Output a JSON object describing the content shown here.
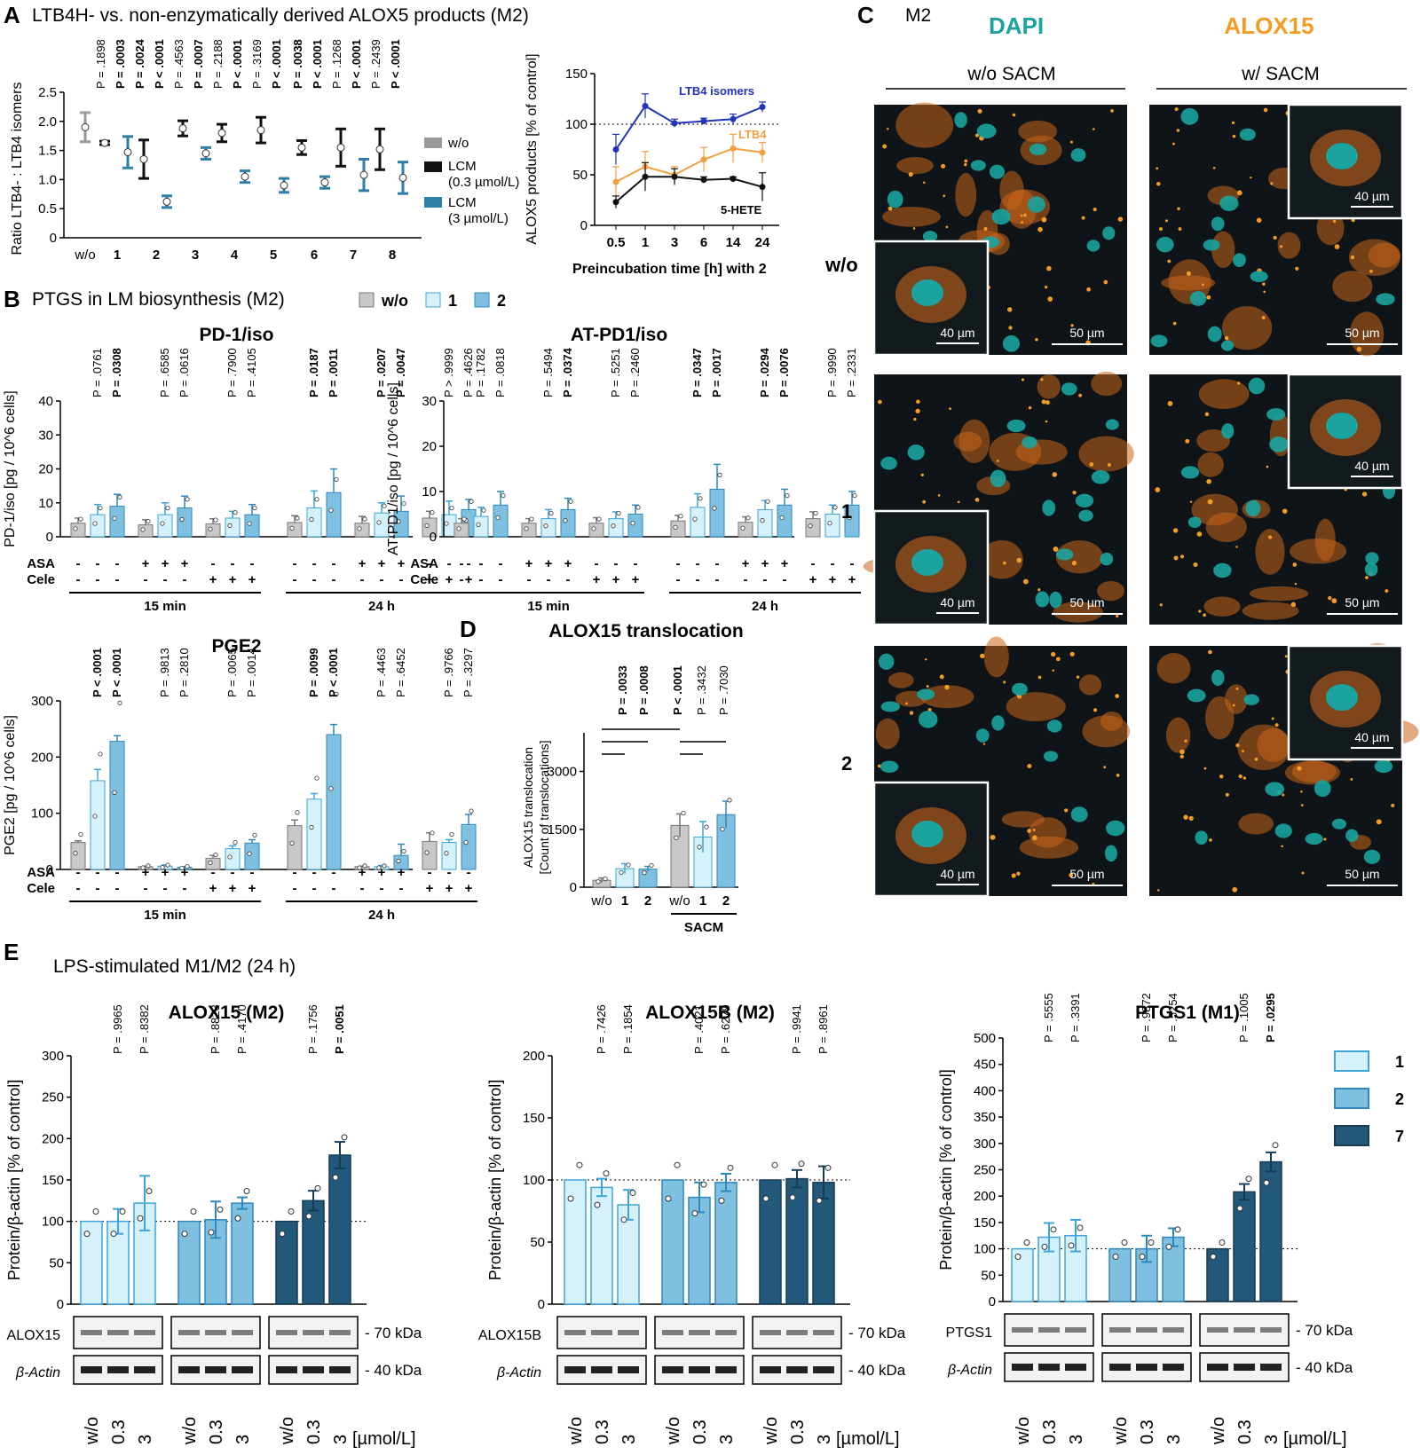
{
  "panels": {
    "A": {
      "letter": "A",
      "title": "LTB4H- vs. non-enzymatically derived ALOX5 products (M2)"
    },
    "B": {
      "letter": "B",
      "title": "PTGS in LM biosynthesis (M2)"
    },
    "C": {
      "letter": "C",
      "title": "M2"
    },
    "D": {
      "letter": "D"
    },
    "E": {
      "letter": "E",
      "title": "LPS-stimulated M1/M2 (24 h)"
    }
  },
  "chart_data": [
    {
      "id": "A_ratio",
      "type": "scatter",
      "ylabel": "Ratio LTB4- : LTB4 isomers",
      "ylim": [
        0,
        2.5
      ],
      "yticks": [
        "0",
        "0.5",
        "1.0",
        "1.5",
        "2.0",
        "2.5"
      ],
      "categories": [
        "w/o",
        "1",
        "2",
        "3",
        "4",
        "5",
        "6",
        "7",
        "8"
      ],
      "legend": [
        "w/o",
        "LCM (0.3 µmol/L)",
        "LCM (3 µmol/L)"
      ],
      "colors": {
        "wo": "#999999",
        "low": "#111111",
        "high": "#2f7ea6"
      },
      "points": [
        {
          "cat": "w/o",
          "series": "w/o",
          "mean": 1.9,
          "err": 0.25
        },
        {
          "cat": "1",
          "series": "LCM (0.3 µmol/L)",
          "mean": 1.63,
          "err": 0.03
        },
        {
          "cat": "1",
          "series": "LCM (3 µmol/L)",
          "mean": 1.47,
          "err": 0.27
        },
        {
          "cat": "2",
          "series": "LCM (0.3 µmol/L)",
          "mean": 1.35,
          "err": 0.33
        },
        {
          "cat": "2",
          "series": "LCM (3 µmol/L)",
          "mean": 0.62,
          "err": 0.1
        },
        {
          "cat": "3",
          "series": "LCM (0.3 µmol/L)",
          "mean": 1.88,
          "err": 0.13
        },
        {
          "cat": "3",
          "series": "LCM (3 µmol/L)",
          "mean": 1.45,
          "err": 0.1
        },
        {
          "cat": "4",
          "series": "LCM (0.3 µmol/L)",
          "mean": 1.8,
          "err": 0.15
        },
        {
          "cat": "4",
          "series": "LCM (3 µmol/L)",
          "mean": 1.05,
          "err": 0.1
        },
        {
          "cat": "5",
          "series": "LCM (0.3 µmol/L)",
          "mean": 1.85,
          "err": 0.22
        },
        {
          "cat": "5",
          "series": "LCM (3 µmol/L)",
          "mean": 0.9,
          "err": 0.12
        },
        {
          "cat": "6",
          "series": "LCM (0.3 µmol/L)",
          "mean": 1.55,
          "err": 0.12
        },
        {
          "cat": "6",
          "series": "LCM (3 µmol/L)",
          "mean": 0.95,
          "err": 0.1
        },
        {
          "cat": "7",
          "series": "LCM (0.3 µmol/L)",
          "mean": 1.55,
          "err": 0.32
        },
        {
          "cat": "7",
          "series": "LCM (3 µmol/L)",
          "mean": 1.08,
          "err": 0.27
        },
        {
          "cat": "8",
          "series": "LCM (0.3 µmol/L)",
          "mean": 1.52,
          "err": 0.35
        },
        {
          "cat": "8",
          "series": "LCM (3 µmol/L)",
          "mean": 1.03,
          "err": 0.27
        }
      ],
      "pvalues": [
        {
          "cat": "1",
          "vals": [
            [
              "P = .1898",
              false
            ],
            [
              "P = .0003",
              true
            ]
          ]
        },
        {
          "cat": "2",
          "vals": [
            [
              "P = .0024",
              true
            ],
            [
              "P < .0001",
              true
            ]
          ]
        },
        {
          "cat": "3",
          "vals": [
            [
              "P = .4563",
              false
            ],
            [
              "P = .0007",
              true
            ]
          ]
        },
        {
          "cat": "4",
          "vals": [
            [
              "P = .2188",
              false
            ],
            [
              "P < .0001",
              true
            ]
          ]
        },
        {
          "cat": "5",
          "vals": [
            [
              "P = .3169",
              false
            ],
            [
              "P < .0001",
              true
            ]
          ]
        },
        {
          "cat": "6",
          "vals": [
            [
              "P = .0038",
              true
            ],
            [
              "P < .0001",
              true
            ]
          ]
        },
        {
          "cat": "7",
          "vals": [
            [
              "P = .1268",
              false
            ],
            [
              "P < .0001",
              true
            ]
          ]
        },
        {
          "cat": "8",
          "vals": [
            [
              "P = .2439",
              false
            ],
            [
              "P < .0001",
              true
            ]
          ]
        }
      ]
    },
    {
      "id": "A_time",
      "type": "line",
      "xlabel": "Preincubation time [h] with 2",
      "ylabel": "ALOX5 products [% of control]",
      "x": [
        "0.5",
        "1",
        "3",
        "6",
        "14",
        "24"
      ],
      "ylim": [
        0,
        150
      ],
      "yticks": [
        "0",
        "50",
        "100",
        "150"
      ],
      "series": [
        {
          "name": "LTB4 isomers",
          "color": "#2233bb",
          "values": [
            75,
            118,
            101,
            103,
            105,
            117
          ],
          "err": [
            15,
            12,
            4,
            3,
            5,
            5
          ]
        },
        {
          "name": "LTB4",
          "color": "#f0a040",
          "values": [
            43,
            58,
            50,
            65,
            76,
            72
          ],
          "err": [
            15,
            15,
            8,
            12,
            14,
            10
          ]
        },
        {
          "name": "5-HETE",
          "color": "#111111",
          "values": [
            23,
            48,
            48,
            45,
            46,
            38
          ],
          "err": [
            6,
            14,
            8,
            3,
            2,
            14
          ]
        }
      ]
    },
    {
      "id": "B_PD1",
      "type": "bar",
      "title": "PD-1/iso",
      "ylabel": "PD-1/iso [pg / 10^6 cells]",
      "ylim": [
        0,
        40
      ],
      "yticks": [
        "0",
        "10",
        "20",
        "30",
        "40"
      ],
      "values": [
        4,
        6.5,
        9,
        3.5,
        6.5,
        8.5,
        3.8,
        5.5,
        6.5,
        4.2,
        8.5,
        13,
        4,
        7,
        7.5,
        5.5,
        6.5,
        8
      ],
      "err": [
        1.5,
        3,
        3.5,
        1.5,
        3.5,
        3.5,
        1.5,
        2,
        3,
        2,
        5,
        7,
        2,
        3,
        4.5,
        2,
        4,
        3
      ],
      "pvalues": [
        [
          "P = .0761",
          false
        ],
        [
          "P = .0308",
          true
        ],
        [
          "P = .6585",
          false
        ],
        [
          "P = .0616",
          false
        ],
        [
          "P = .7900",
          false
        ],
        [
          "P = .4105",
          false
        ],
        [
          "P = .0187",
          true
        ],
        [
          "P = .0011",
          true
        ],
        [
          "P = .0207",
          true
        ],
        [
          "P = .0047",
          true
        ],
        [
          "P > .9999",
          false
        ],
        [
          "P = .4626",
          false
        ]
      ],
      "groups": [
        "15 min",
        "24 h"
      ]
    },
    {
      "id": "B_ATPD1",
      "type": "bar",
      "title": "AT-PD1/iso",
      "ylabel": "AT-PD1/iso [pg / 10^6 cells]",
      "ylim": [
        0,
        30
      ],
      "yticks": [
        "0",
        "10",
        "20",
        "30"
      ],
      "values": [
        3,
        4.5,
        7,
        3,
        4,
        6,
        3,
        4,
        5,
        3.5,
        6.5,
        10.5,
        3.2,
        6,
        7,
        4,
        5,
        7
      ],
      "err": [
        1,
        2,
        3,
        1,
        2,
        2.5,
        1.2,
        1.5,
        2,
        1.2,
        3,
        5.5,
        1.2,
        2,
        3.5,
        1.5,
        2,
        3
      ],
      "pvalues": [
        [
          "P = .1782",
          false
        ],
        [
          "P = .0818",
          false
        ],
        [
          "P = .5494",
          false
        ],
        [
          "P = .0374",
          true
        ],
        [
          "P = .5251",
          false
        ],
        [
          "P = .2460",
          false
        ],
        [
          "P = .0347",
          true
        ],
        [
          "P = .0017",
          true
        ],
        [
          "P = .0294",
          true
        ],
        [
          "P = .0076",
          true
        ],
        [
          "P = .9990",
          false
        ],
        [
          "P = .2331",
          false
        ]
      ],
      "groups": [
        "15 min",
        "24 h"
      ]
    },
    {
      "id": "B_PGE2",
      "type": "bar",
      "title": "PGE2",
      "ylabel": "PGE2 [pg / 10^6 cells]",
      "ylim": [
        0,
        300
      ],
      "yticks": [
        "0",
        "100",
        "200",
        "300"
      ],
      "values": [
        48,
        158,
        228,
        5,
        6,
        4,
        20,
        37,
        47,
        78,
        125,
        240,
        5,
        5,
        25,
        50,
        48,
        80
      ],
      "err": [
        3,
        20,
        10,
        1,
        2,
        1,
        5,
        5,
        6,
        10,
        10,
        18,
        1,
        2,
        20,
        15,
        5,
        18
      ],
      "pvalues": [
        [
          "P < .0001",
          true
        ],
        [
          "P < .0001",
          true
        ],
        [
          "P = .9813",
          false
        ],
        [
          "P = .2810",
          false
        ],
        [
          "P = .0065",
          false
        ],
        [
          "P = .0014",
          false
        ],
        [
          "P = .0099",
          true
        ],
        [
          "P < .0001",
          true
        ],
        [
          "P = .4463",
          false
        ],
        [
          "P = .6452",
          false
        ],
        [
          "P = .9766",
          false
        ],
        [
          "P = .3297",
          false
        ]
      ],
      "groups": [
        "15 min",
        "24 h"
      ]
    },
    {
      "id": "D",
      "type": "bar",
      "title": "ALOX15 translocation",
      "ylabel": "ALOX15 translocation [Count of translocations]",
      "categories": [
        "w/o",
        "1",
        "2",
        "w/o",
        "1",
        "2"
      ],
      "ylim": [
        0,
        4000
      ],
      "yticks": [
        "0",
        "1500",
        "3000"
      ],
      "values": [
        180,
        480,
        470,
        1600,
        1300,
        1880
      ],
      "err": [
        60,
        130,
        70,
        300,
        400,
        350
      ],
      "pvalues": [
        [
          "P = .0033",
          true
        ],
        [
          "P = .0008",
          true
        ],
        [
          "P < .0001",
          true
        ],
        [
          "P = .3432",
          false
        ],
        [
          "P = .7030",
          false
        ]
      ],
      "group_label": "SACM"
    },
    {
      "id": "E_ALOX15",
      "type": "bar",
      "title": "ALOX15 (M2)",
      "ylabel": "Protein/β-actin [% of control]",
      "ylim": [
        0,
        300
      ],
      "yticks": [
        "0",
        "50",
        "100",
        "150",
        "200",
        "250",
        "300"
      ],
      "values": [
        100,
        100,
        122,
        100,
        102,
        122,
        100,
        125,
        180
      ],
      "err": [
        0,
        15,
        33,
        0,
        22,
        7,
        0,
        12,
        16
      ],
      "pvalues": [
        [
          "P = .9965",
          false
        ],
        [
          "P = .8382",
          false
        ],
        [
          "P = .8823",
          false
        ],
        [
          "P = .4170",
          false
        ],
        [
          "P = .1756",
          false
        ],
        [
          "P = .0051",
          true
        ]
      ],
      "blot": "ALOX15",
      "blot_kda": "70 kDa"
    },
    {
      "id": "E_ALOX15B",
      "type": "bar",
      "title": "ALOX15B (M2)",
      "ylabel": "Protein/β-actin [% of control]",
      "ylim": [
        0,
        200
      ],
      "yticks": [
        "0",
        "50",
        "100",
        "150",
        "200"
      ],
      "values": [
        100,
        94,
        80,
        100,
        86,
        98,
        100,
        101,
        98
      ],
      "err": [
        0,
        7,
        12,
        0,
        12,
        7,
        0,
        7,
        13
      ],
      "pvalues": [
        [
          "P = .7426",
          false
        ],
        [
          "P = .1854",
          false
        ],
        [
          "P = .4021",
          false
        ],
        [
          "P = .6279",
          false
        ],
        [
          "P = .9941",
          false
        ],
        [
          "P = .8961",
          false
        ]
      ],
      "blot": "ALOX15B",
      "blot_kda": "70 kDa"
    },
    {
      "id": "E_PTGS1",
      "type": "bar",
      "title": "PTGS1 (M1)",
      "ylabel": "Protein/β-actin [% of control]",
      "ylim": [
        0,
        500
      ],
      "yticks": [
        "0",
        "50",
        "100",
        "150",
        "200",
        "250",
        "300",
        "350",
        "400",
        "450",
        "500"
      ],
      "values": [
        100,
        122,
        125,
        100,
        100,
        122,
        100,
        208,
        265
      ],
      "err": [
        0,
        27,
        30,
        0,
        25,
        17,
        0,
        15,
        18
      ],
      "pvalues": [
        [
          "P = .5555",
          false
        ],
        [
          "P = .3391",
          false
        ],
        [
          "P = .9872",
          false
        ],
        [
          "P = .5254",
          false
        ],
        [
          "P = .1005",
          false
        ],
        [
          "P = .0295",
          true
        ]
      ],
      "blot": "PTGS1",
      "blot_kda": "70 kDa"
    }
  ],
  "labels": {
    "legendA": {
      "wo": "w/o",
      "low1": "LCM",
      "low2": "(0.3 µmol/L)",
      "high1": "LCM",
      "high2": "(3 µmol/L)"
    },
    "timeSeries": {
      "iso": "LTB4 isomers",
      "ltb4": "LTB4",
      "hete": "5-HETE",
      "xlabel": "Preincubation time [h] with 2"
    },
    "legendB": {
      "wo": "w/o",
      "c1": "1",
      "c2": "2"
    },
    "asa": "ASA",
    "cele": "Cele",
    "min15": "15 min",
    "h24": "24 h",
    "sacm": "SACM",
    "c": {
      "dapi": "DAPI",
      "alox15": "ALOX15",
      "woSacm": "w/o SACM",
      "wSacm": "w/ SACM",
      "rowWo": "w/o",
      "row1": "1",
      "row2": "2",
      "s40": "40 µm",
      "s50": "50 µm"
    },
    "legendE": {
      "c1": "1",
      "c2": "2",
      "c7": "7"
    },
    "blot": {
      "kda70": "70 kDa",
      "kda40": "40 kDa",
      "actin": "β-Actin",
      "unit": "[µmol/L]",
      "wo": "w/o",
      "d1": "0.3",
      "d2": "3"
    }
  },
  "colors": {
    "grey": "#c8c8c8",
    "light": "#d5f1fb",
    "mid": "#7fc0e0",
    "dark": "#22587a",
    "lightEdge": "#3ea5d8",
    "midEdge": "#2f88bc",
    "darkEdge": "#173c55",
    "teal": "#1aa39f",
    "orange": "#f39c25"
  }
}
